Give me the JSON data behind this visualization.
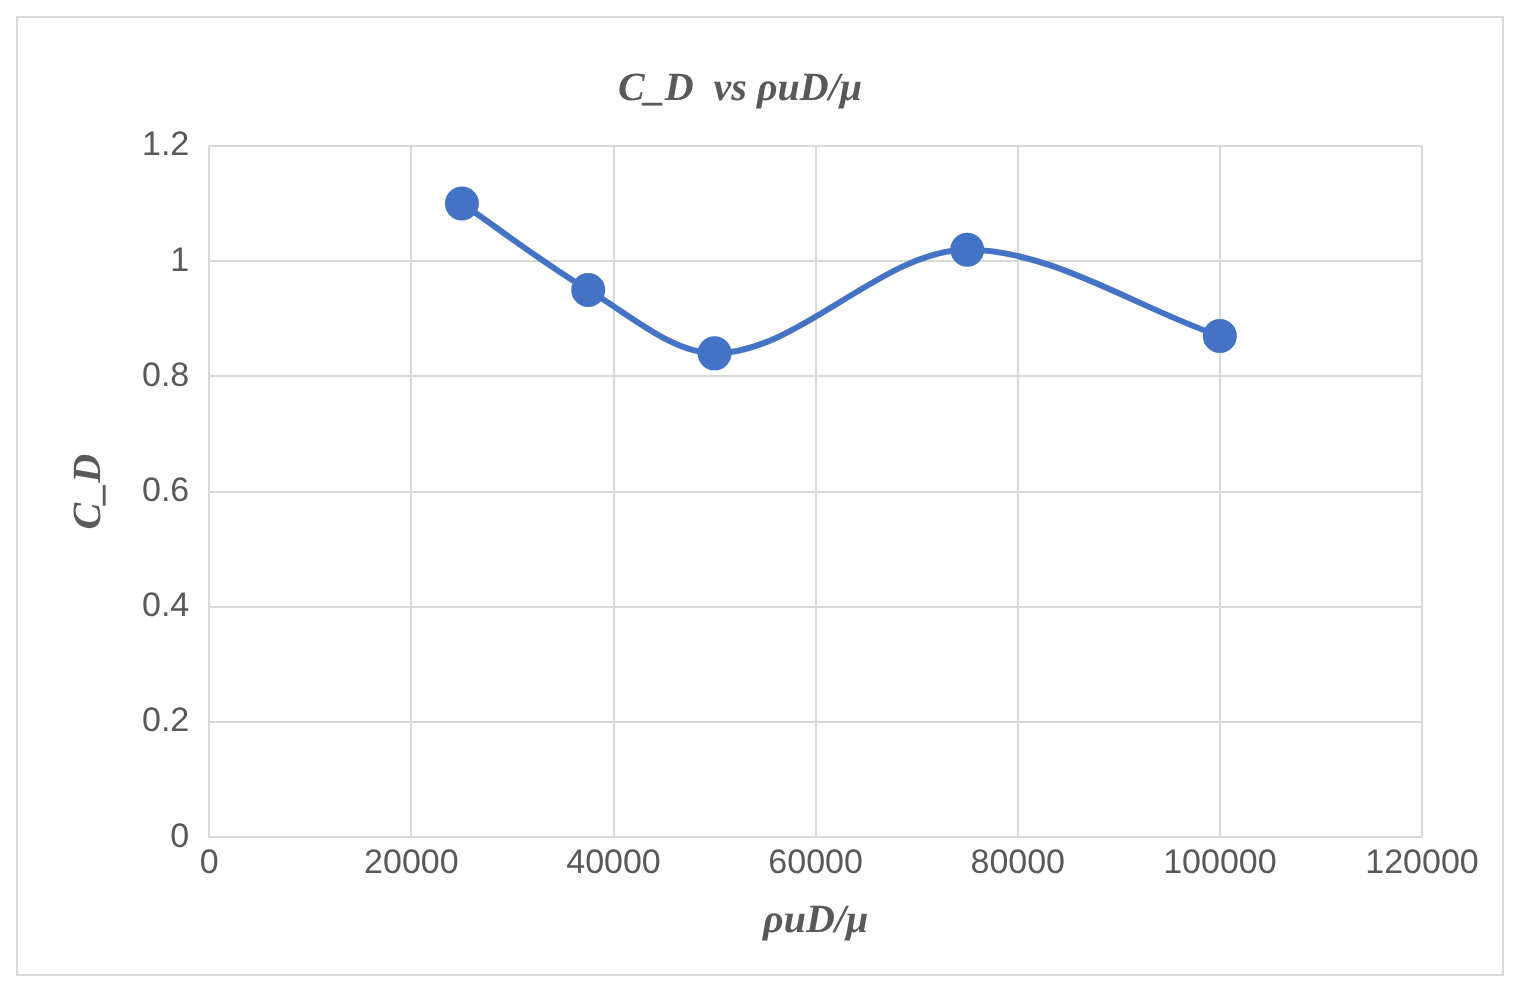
{
  "chart_data": {
    "type": "line",
    "title": "C_D  vs ρuD/μ",
    "xlabel": "ρuD/μ",
    "ylabel": "C_D",
    "x": [
      25000,
      37500,
      50000,
      75000,
      100000
    ],
    "series": [
      {
        "color": "#4472c4",
        "values": [
          1.1,
          0.95,
          0.84,
          1.02,
          0.87
        ]
      }
    ],
    "xlim": [
      0,
      120000
    ],
    "xticks": [
      0,
      20000,
      40000,
      60000,
      80000,
      100000,
      120000
    ],
    "ylim": [
      0,
      1.2
    ],
    "yticks": [
      0,
      0.2,
      0.4,
      0.6,
      0.8,
      1,
      1.2
    ],
    "grid": true,
    "legend": false,
    "marker": "circle",
    "line_style": "solid"
  }
}
